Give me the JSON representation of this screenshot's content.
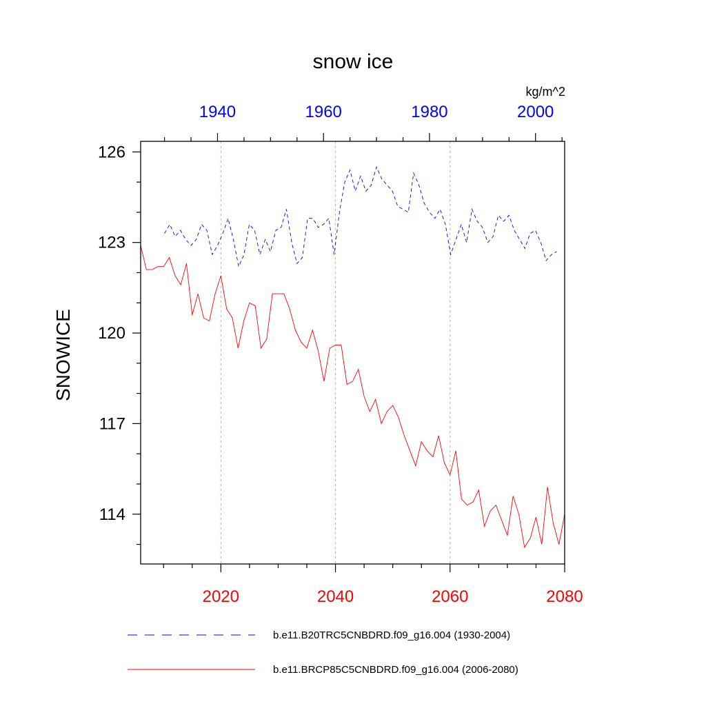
{
  "chart_data": {
    "type": "line",
    "title": "snow ice",
    "units": "kg/m^2",
    "ylabel": "SNOWICE",
    "ylim": [
      112.35,
      126.35
    ],
    "yticks": [
      114,
      117,
      120,
      123,
      126
    ],
    "top_axis": {
      "xlim": [
        1925.5,
        2005.5
      ],
      "ticks": [
        1940,
        1960,
        1980,
        2000
      ],
      "color": "#0000ff"
    },
    "bottom_axis": {
      "xlim": [
        2006,
        2080
      ],
      "ticks": [
        2020,
        2040,
        2060,
        2080
      ],
      "color": "#ff0000"
    },
    "grid": "vertical dotted lines at bottom-axis major ticks",
    "legend_position": "bottom",
    "series": [
      {
        "name": "b.e11.B20TRC5CNBDRD.f09_g16.004 (1930-2004)",
        "axis": "top",
        "color": "#0000ff",
        "dash": "dashed",
        "x": [
          1930,
          1931,
          1932,
          1933,
          1934,
          1935,
          1936,
          1937,
          1938,
          1939,
          1940,
          1941,
          1942,
          1943,
          1944,
          1945,
          1946,
          1947,
          1948,
          1949,
          1950,
          1951,
          1952,
          1953,
          1954,
          1955,
          1956,
          1957,
          1958,
          1959,
          1960,
          1961,
          1962,
          1963,
          1964,
          1965,
          1966,
          1967,
          1968,
          1969,
          1970,
          1971,
          1972,
          1973,
          1974,
          1975,
          1976,
          1977,
          1978,
          1979,
          1980,
          1981,
          1982,
          1983,
          1984,
          1985,
          1986,
          1987,
          1988,
          1989,
          1990,
          1991,
          1992,
          1993,
          1994,
          1995,
          1996,
          1997,
          1998,
          1999,
          2000,
          2001,
          2002,
          2003,
          2004
        ],
        "values": [
          123.3,
          123.6,
          123.2,
          123.4,
          123.1,
          122.9,
          123.1,
          123.6,
          123.4,
          122.6,
          122.9,
          123.3,
          123.8,
          123.1,
          122.2,
          122.6,
          123.6,
          123.4,
          122.6,
          123.1,
          122.7,
          123.4,
          123.5,
          124.1,
          123.0,
          122.3,
          122.5,
          123.8,
          123.8,
          123.5,
          123.6,
          123.8,
          122.6,
          124.0,
          125.0,
          125.4,
          124.7,
          125.2,
          124.7,
          124.9,
          125.5,
          125.1,
          124.9,
          124.7,
          124.2,
          124.1,
          124.0,
          125.3,
          124.9,
          124.3,
          124.0,
          123.8,
          124.1,
          123.6,
          122.6,
          123.1,
          123.6,
          123.0,
          124.1,
          123.7,
          123.5,
          123.0,
          123.2,
          123.9,
          123.7,
          123.9,
          123.4,
          123.1,
          122.8,
          123.3,
          123.4,
          123.0,
          122.4,
          122.6,
          122.7
        ]
      },
      {
        "name": "b.e11.BRCP85C5CNBDRD.f09_g16.004 (2006-2080)",
        "axis": "bottom",
        "color": "#ff0000",
        "dash": "solid",
        "x": [
          2006,
          2007,
          2008,
          2009,
          2010,
          2011,
          2012,
          2013,
          2014,
          2015,
          2016,
          2017,
          2018,
          2019,
          2020,
          2021,
          2022,
          2023,
          2024,
          2025,
          2026,
          2027,
          2028,
          2029,
          2030,
          2031,
          2032,
          2033,
          2034,
          2035,
          2036,
          2037,
          2038,
          2039,
          2040,
          2041,
          2042,
          2043,
          2044,
          2045,
          2046,
          2047,
          2048,
          2049,
          2050,
          2051,
          2052,
          2053,
          2054,
          2055,
          2056,
          2057,
          2058,
          2059,
          2060,
          2061,
          2062,
          2063,
          2064,
          2065,
          2066,
          2067,
          2068,
          2069,
          2070,
          2071,
          2072,
          2073,
          2074,
          2075,
          2076,
          2077,
          2078,
          2079,
          2080
        ],
        "values": [
          122.9,
          122.1,
          122.1,
          122.2,
          122.2,
          122.5,
          121.9,
          121.6,
          122.3,
          120.6,
          121.3,
          120.5,
          120.4,
          121.3,
          121.9,
          120.8,
          120.5,
          119.5,
          120.4,
          121.0,
          120.9,
          119.5,
          119.8,
          121.3,
          121.3,
          121.3,
          120.8,
          120.1,
          119.7,
          119.5,
          120.1,
          119.4,
          118.4,
          119.5,
          119.6,
          119.6,
          118.3,
          118.4,
          118.8,
          117.9,
          117.4,
          117.8,
          117.0,
          117.4,
          117.6,
          117.2,
          116.6,
          116.1,
          115.6,
          116.4,
          116.1,
          115.9,
          116.6,
          115.7,
          115.3,
          116.1,
          114.5,
          114.3,
          114.4,
          114.8,
          113.6,
          114.1,
          114.3,
          113.8,
          113.3,
          114.6,
          114.0,
          112.9,
          113.2,
          113.9,
          113.0,
          114.9,
          113.7,
          113.0,
          114.0
        ]
      }
    ]
  }
}
